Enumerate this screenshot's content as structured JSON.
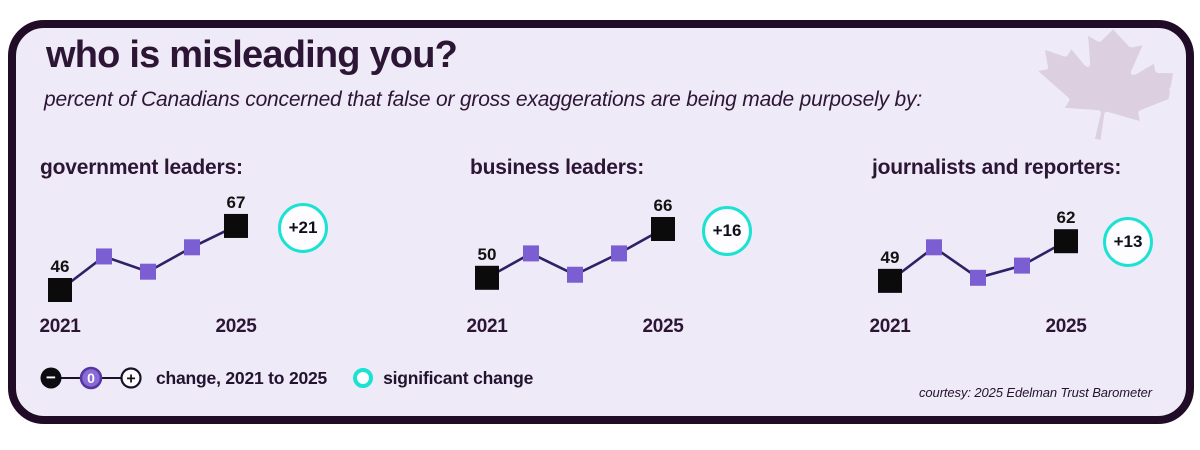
{
  "header": {
    "title": "who is misleading you?",
    "subtitle": "percent of Canadians concerned that false or gross exaggerations are being made purposely by:"
  },
  "colors": {
    "card_bg": "#eeeaf7",
    "frame": "#200c26",
    "heading": "#2d1535",
    "line": "#2f2166",
    "marker_mid": "#7b5ed2",
    "marker_end": "#0b0b0b",
    "accent_teal": "#1be2d2",
    "leaf": "#dbcfe0",
    "legend_zero_fill": "#8a6ad6",
    "legend_zero_ring": "#53379f"
  },
  "chart_data": [
    {
      "type": "line",
      "title": "government leaders:",
      "x": [
        2021,
        2022,
        2023,
        2024,
        2025
      ],
      "values": [
        46,
        57,
        52,
        60,
        67
      ],
      "labeled_values": {
        "2021": 46,
        "2025": 67
      },
      "x_ticks_shown": [
        "2021",
        "2025"
      ],
      "change_badge": "+21",
      "significant": true,
      "grid": false,
      "legend_position": "none"
    },
    {
      "type": "line",
      "title": "business leaders:",
      "x": [
        2021,
        2022,
        2023,
        2024,
        2025
      ],
      "values": [
        50,
        58,
        51,
        58,
        66
      ],
      "labeled_values": {
        "2021": 50,
        "2025": 66
      },
      "x_ticks_shown": [
        "2021",
        "2025"
      ],
      "change_badge": "+16",
      "significant": true,
      "grid": false,
      "legend_position": "none"
    },
    {
      "type": "line",
      "title": "journalists and reporters:",
      "x": [
        2021,
        2022,
        2023,
        2024,
        2025
      ],
      "values": [
        49,
        60,
        50,
        54,
        62
      ],
      "labeled_values": {
        "2021": 49,
        "2025": 62
      },
      "x_ticks_shown": [
        "2021",
        "2025"
      ],
      "change_badge": "+13",
      "significant": true,
      "grid": false,
      "legend_position": "none"
    }
  ],
  "legend": {
    "minus_symbol": "−",
    "zero_symbol": "0",
    "plus_symbol": "+",
    "change_label": "change, 2021 to 2025",
    "significant_label": "significant change"
  },
  "footer": {
    "courtesy": "courtesy: 2025 Edelman Trust Barometer"
  }
}
